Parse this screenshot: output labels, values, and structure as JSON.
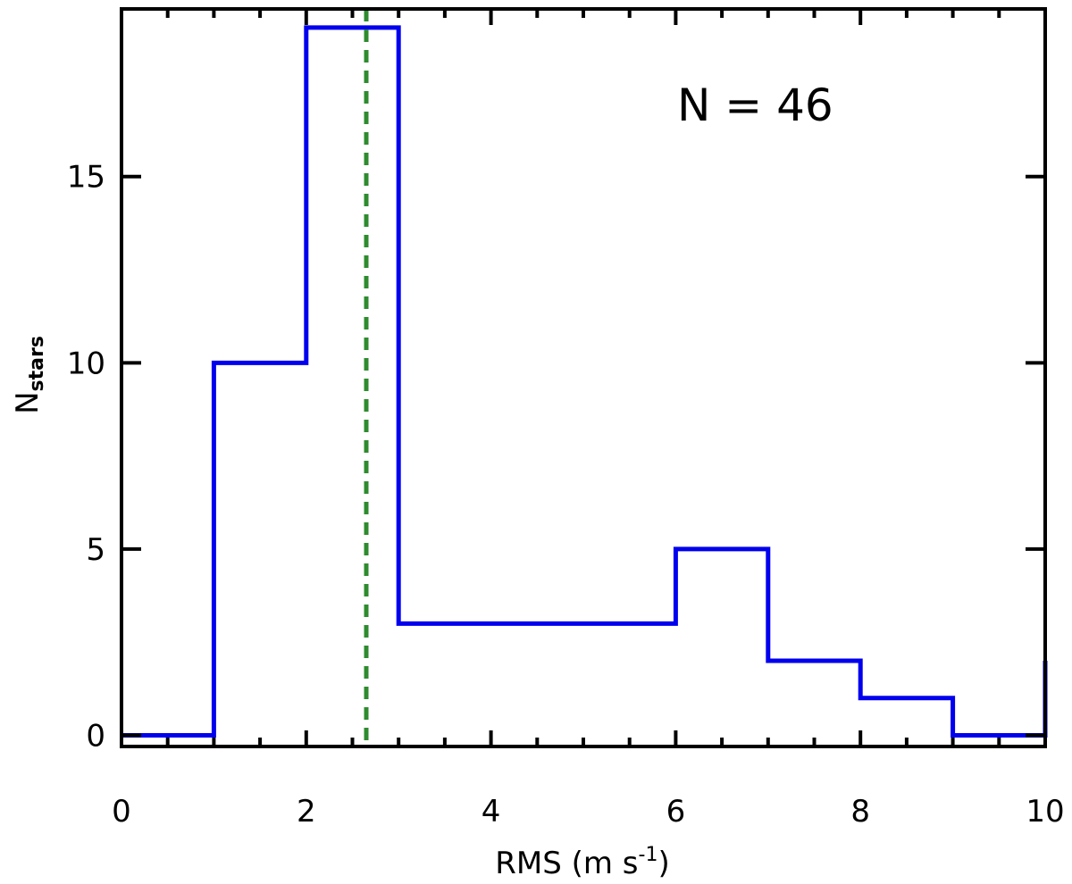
{
  "chart_data": {
    "type": "histogram",
    "bin_edges": [
      0,
      1,
      2,
      3,
      4,
      5,
      6,
      7,
      8,
      9,
      10
    ],
    "counts": [
      0,
      10,
      19,
      3,
      3,
      3,
      5,
      2,
      1,
      0
    ],
    "right_edge_value": 2,
    "reference_line": {
      "x": 2.65,
      "style": "dashed"
    },
    "xlim": [
      0,
      10
    ],
    "ylim": [
      -0.3,
      19.5
    ],
    "x_ticks": [
      0,
      2,
      4,
      6,
      8,
      10
    ],
    "x_tick_labels": [
      "0",
      "2",
      "4",
      "6",
      "8",
      "10"
    ],
    "y_ticks": [
      0,
      5,
      10,
      15
    ],
    "y_tick_labels": [
      "0",
      "5",
      "10",
      "15"
    ],
    "xlabel": {
      "main": "RMS  (m  s",
      "sup": "-1",
      "end": ")"
    },
    "ylabel": {
      "main": "N",
      "sub": "stars"
    },
    "annotation": "N  =  46",
    "grid": false,
    "colors": {
      "histogram": "#0000ee",
      "reference_line": "#2e8b2e",
      "axes": "#000000"
    }
  }
}
